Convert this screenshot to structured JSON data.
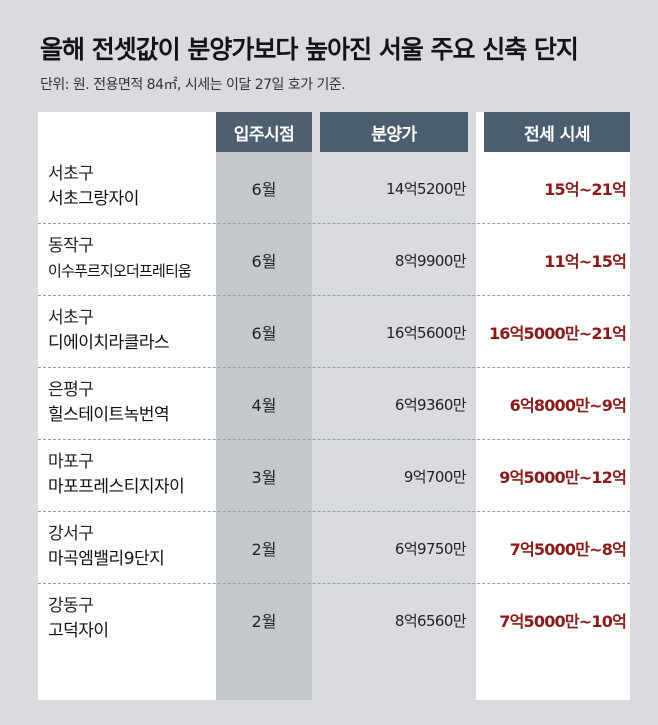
{
  "header": {
    "title": "올해 전셋값이 분양가보다 높아진 서울 주요 신축 단지",
    "subtitle": "단위: 원. 전용면적 84㎡, 시세는 이달 27일 호가 기준."
  },
  "table": {
    "columns": [
      "입주시점",
      "분양가",
      "전세 시세"
    ],
    "rows": [
      {
        "district": "서초구",
        "complex": "서초그랑자이",
        "move_in": "6월",
        "sale_price": "14억5200만",
        "jeonse": "15억~21억"
      },
      {
        "district": "동작구",
        "complex": "이수푸르지오더프레티움",
        "move_in": "6월",
        "sale_price": "8억9900만",
        "jeonse": "11억~15억"
      },
      {
        "district": "서초구",
        "complex": "디에이치라클라스",
        "move_in": "6월",
        "sale_price": "16억5600만",
        "jeonse": "16억5000만~21억"
      },
      {
        "district": "은평구",
        "complex": "힐스테이트녹번역",
        "move_in": "4월",
        "sale_price": "6억9360만",
        "jeonse": "6억8000만~9억"
      },
      {
        "district": "마포구",
        "complex": "마포프레스티지자이",
        "move_in": "3월",
        "sale_price": "9억700만",
        "jeonse": "9억5000만~12억"
      },
      {
        "district": "강서구",
        "complex": "마곡엠밸리9단지",
        "move_in": "2월",
        "sale_price": "6억9750만",
        "jeonse": "7억5000만~8억"
      },
      {
        "district": "강동구",
        "complex": "고덕자이",
        "move_in": "2월",
        "sale_price": "8억6560만",
        "jeonse": "7억5000만~10억"
      }
    ]
  },
  "colors": {
    "header_bg": "#4b5e70",
    "jeonse_text": "#8b1a1a",
    "page_bg": "#d9dbde"
  }
}
